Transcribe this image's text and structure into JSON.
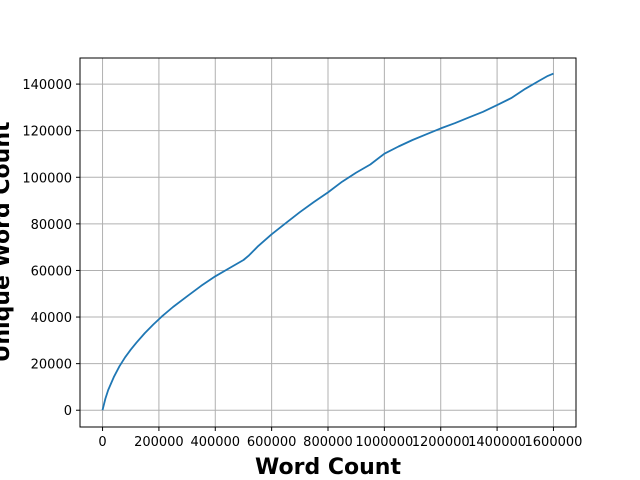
{
  "chart_data": {
    "type": "line",
    "title": "",
    "xlabel": "Word Count",
    "ylabel": "Unique Word Count",
    "xlim": [
      -80000,
      1680000
    ],
    "ylim": [
      -7200,
      151200
    ],
    "xticks": [
      0,
      200000,
      400000,
      600000,
      800000,
      1000000,
      1200000,
      1400000,
      1600000
    ],
    "xtick_labels": [
      "0",
      "200000",
      "400000",
      "600000",
      "800000",
      "1000000",
      "1200000",
      "1400000",
      "1600000"
    ],
    "yticks": [
      0,
      20000,
      40000,
      60000,
      80000,
      100000,
      120000,
      140000
    ],
    "ytick_labels": [
      "0",
      "20000",
      "40000",
      "60000",
      "80000",
      "100000",
      "120000",
      "140000"
    ],
    "grid": true,
    "legend": "none",
    "colors": {
      "line": "#1f77b4",
      "grid": "#b0b0b0",
      "axes": "#000000"
    },
    "series": [
      {
        "x": [
          0,
          10000,
          20000,
          40000,
          60000,
          80000,
          100000,
          120000,
          150000,
          180000,
          210000,
          250000,
          300000,
          350000,
          400000,
          450000,
          500000,
          520000,
          550000,
          600000,
          650000,
          700000,
          750000,
          800000,
          850000,
          900000,
          950000,
          1000000,
          1050000,
          1100000,
          1150000,
          1200000,
          1250000,
          1300000,
          1350000,
          1400000,
          1450000,
          1500000,
          1550000,
          1580000,
          1600000
        ],
        "y": [
          0,
          5000,
          8700,
          14200,
          18900,
          22700,
          26000,
          29000,
          33100,
          36800,
          40200,
          44300,
          48900,
          53400,
          57500,
          61000,
          64500,
          66500,
          70200,
          75500,
          80300,
          85000,
          89400,
          93500,
          98100,
          102000,
          105500,
          110100,
          113200,
          116000,
          118500,
          121000,
          123200,
          125700,
          128100,
          131000,
          134000,
          138000,
          141500,
          143500,
          144500
        ]
      }
    ]
  }
}
